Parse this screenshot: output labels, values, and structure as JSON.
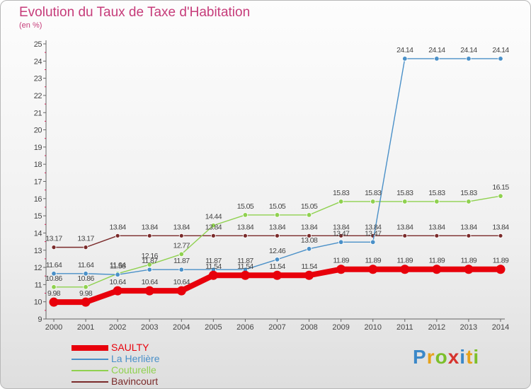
{
  "title": "Evolution du Taux de Taxe d'Habitation",
  "subtitle": "(en %)",
  "logo_text": [
    "P",
    "r",
    "o",
    "x",
    "i",
    "t",
    "i"
  ],
  "chart_data": {
    "type": "line",
    "title": "Evolution du Taux de Taxe d'Habitation",
    "ylabel": "(en %)",
    "xlabel": "",
    "x": [
      "2000",
      "2001",
      "2002",
      "2003",
      "2004",
      "2005",
      "2006",
      "2007",
      "2008",
      "2009",
      "2010",
      "2011",
      "2012",
      "2013",
      "2014"
    ],
    "ylim": [
      9,
      25
    ],
    "yticks": [
      9,
      10,
      11,
      12,
      13,
      14,
      15,
      16,
      17,
      18,
      19,
      20,
      21,
      22,
      23,
      24,
      25
    ],
    "grid": false,
    "legend_position": "bottom-left",
    "series": [
      {
        "name": "SAULTY",
        "color": "#e8000b",
        "values": [
          9.98,
          9.98,
          10.64,
          10.64,
          10.64,
          11.54,
          11.54,
          11.54,
          11.54,
          11.89,
          11.89,
          11.89,
          11.89,
          11.89,
          11.89
        ]
      },
      {
        "name": "La Herlière",
        "color": "#4a90c8",
        "values": [
          11.64,
          11.64,
          11.58,
          11.87,
          11.87,
          11.87,
          11.87,
          12.46,
          13.08,
          13.47,
          13.47,
          24.14,
          24.14,
          24.14,
          24.14
        ]
      },
      {
        "name": "Couturelle",
        "color": "#8fd14f",
        "values": [
          10.86,
          10.86,
          11.64,
          12.16,
          12.77,
          14.44,
          15.05,
          15.05,
          15.05,
          15.83,
          15.83,
          15.83,
          15.83,
          15.83,
          16.15
        ]
      },
      {
        "name": "Bavincourt",
        "color": "#7a2a2a",
        "values": [
          13.17,
          13.17,
          13.84,
          13.84,
          13.84,
          13.84,
          13.84,
          13.84,
          13.84,
          13.84,
          13.84,
          13.84,
          13.84,
          13.84,
          13.84
        ]
      }
    ]
  }
}
